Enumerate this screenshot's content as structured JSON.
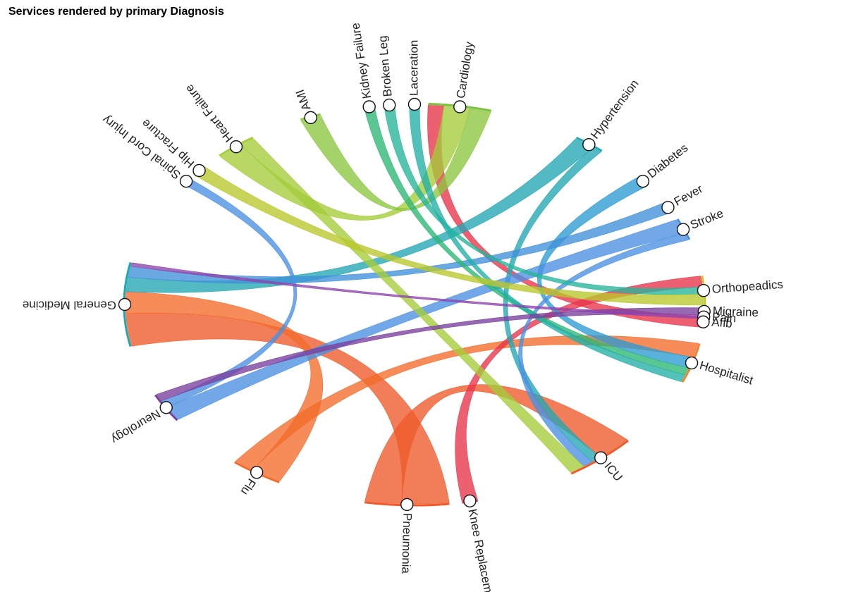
{
  "title": "Services rendered by primary Diagnosis",
  "chart_data": {
    "type": "chord",
    "title": "Services rendered by primary Diagnosis",
    "nodes": [
      {
        "name": "Cardiology",
        "group": "service",
        "color": "#7dc142"
      },
      {
        "name": "Hypertension",
        "group": "diagnosis",
        "color": "#22a6b3"
      },
      {
        "name": "Diabetes",
        "group": "diagnosis",
        "color": "#2b9bd1"
      },
      {
        "name": "Fever",
        "group": "diagnosis",
        "color": "#3f8fd9"
      },
      {
        "name": "Stroke",
        "group": "diagnosis",
        "color": "#4a90e2"
      },
      {
        "name": "Orthopeadics",
        "group": "service",
        "color": "#c7c928"
      },
      {
        "name": "Migraine",
        "group": "diagnosis",
        "color": "#7b3f9e"
      },
      {
        "name": "Pain",
        "group": "diagnosis",
        "color": "#8e44ad"
      },
      {
        "name": "Afib",
        "group": "diagnosis",
        "color": "#e8334a"
      },
      {
        "name": "Hospitalist",
        "group": "service",
        "color": "#f0822e"
      },
      {
        "name": "ICU",
        "group": "service",
        "color": "#ee5a2a"
      },
      {
        "name": "Knee Replacement",
        "group": "diagnosis",
        "color": "#e8334a"
      },
      {
        "name": "Pneumonia",
        "group": "diagnosis",
        "color": "#ee5a2a"
      },
      {
        "name": "Flu",
        "group": "diagnosis",
        "color": "#f26b2a"
      },
      {
        "name": "Neurology",
        "group": "service",
        "color": "#7b3f9e"
      },
      {
        "name": "General Medicine",
        "group": "service",
        "color": "#1ea7b0"
      },
      {
        "name": "Spinal Cord Injury",
        "group": "diagnosis",
        "color": "#4a90e2"
      },
      {
        "name": "Hip Fracture",
        "group": "diagnosis",
        "color": "#b8c82a"
      },
      {
        "name": "Heart Failure",
        "group": "diagnosis",
        "color": "#a4cc3a"
      },
      {
        "name": "AMI",
        "group": "diagnosis",
        "color": "#8cc63f"
      },
      {
        "name": "Kidney Failure",
        "group": "diagnosis",
        "color": "#2bb673"
      },
      {
        "name": "Broken Leg",
        "group": "diagnosis",
        "color": "#26b59a"
      },
      {
        "name": "Laceration",
        "group": "diagnosis",
        "color": "#22b0a6"
      }
    ],
    "links": [
      {
        "source": "Pneumonia",
        "target": "General Medicine",
        "value": 9
      },
      {
        "source": "Pneumonia",
        "target": "ICU",
        "value": 7
      },
      {
        "source": "Flu",
        "target": "General Medicine",
        "value": 6
      },
      {
        "source": "Flu",
        "target": "Hospitalist",
        "value": 4
      },
      {
        "source": "Knee Replacement",
        "target": "Orthopeadics",
        "value": 3
      },
      {
        "source": "Afib",
        "target": "Cardiology",
        "value": 3
      },
      {
        "source": "Hypertension",
        "target": "General Medicine",
        "value": 4
      },
      {
        "source": "Hypertension",
        "target": "ICU",
        "value": 2
      },
      {
        "source": "Diabetes",
        "target": "Hospitalist",
        "value": 3
      },
      {
        "source": "Fever",
        "target": "General Medicine",
        "value": 3
      },
      {
        "source": "Stroke",
        "target": "Neurology",
        "value": 4
      },
      {
        "source": "Stroke",
        "target": "ICU",
        "value": 2
      },
      {
        "source": "Heart Failure",
        "target": "Cardiology",
        "value": 5
      },
      {
        "source": "Heart Failure",
        "target": "ICU",
        "value": 3
      },
      {
        "source": "AMI",
        "target": "Cardiology",
        "value": 4
      },
      {
        "source": "Kidney Failure",
        "target": "Hospitalist",
        "value": 2
      },
      {
        "source": "Broken Leg",
        "target": "Orthopeadics",
        "value": 2
      },
      {
        "source": "Laceration",
        "target": "Hospitalist",
        "value": 2
      },
      {
        "source": "Hip Fracture",
        "target": "Orthopeadics",
        "value": 3
      },
      {
        "source": "Spinal Cord Injury",
        "target": "Neurology",
        "value": 2
      },
      {
        "source": "Migraine",
        "target": "Neurology",
        "value": 2
      },
      {
        "source": "Pain",
        "target": "General Medicine",
        "value": 1
      }
    ]
  }
}
